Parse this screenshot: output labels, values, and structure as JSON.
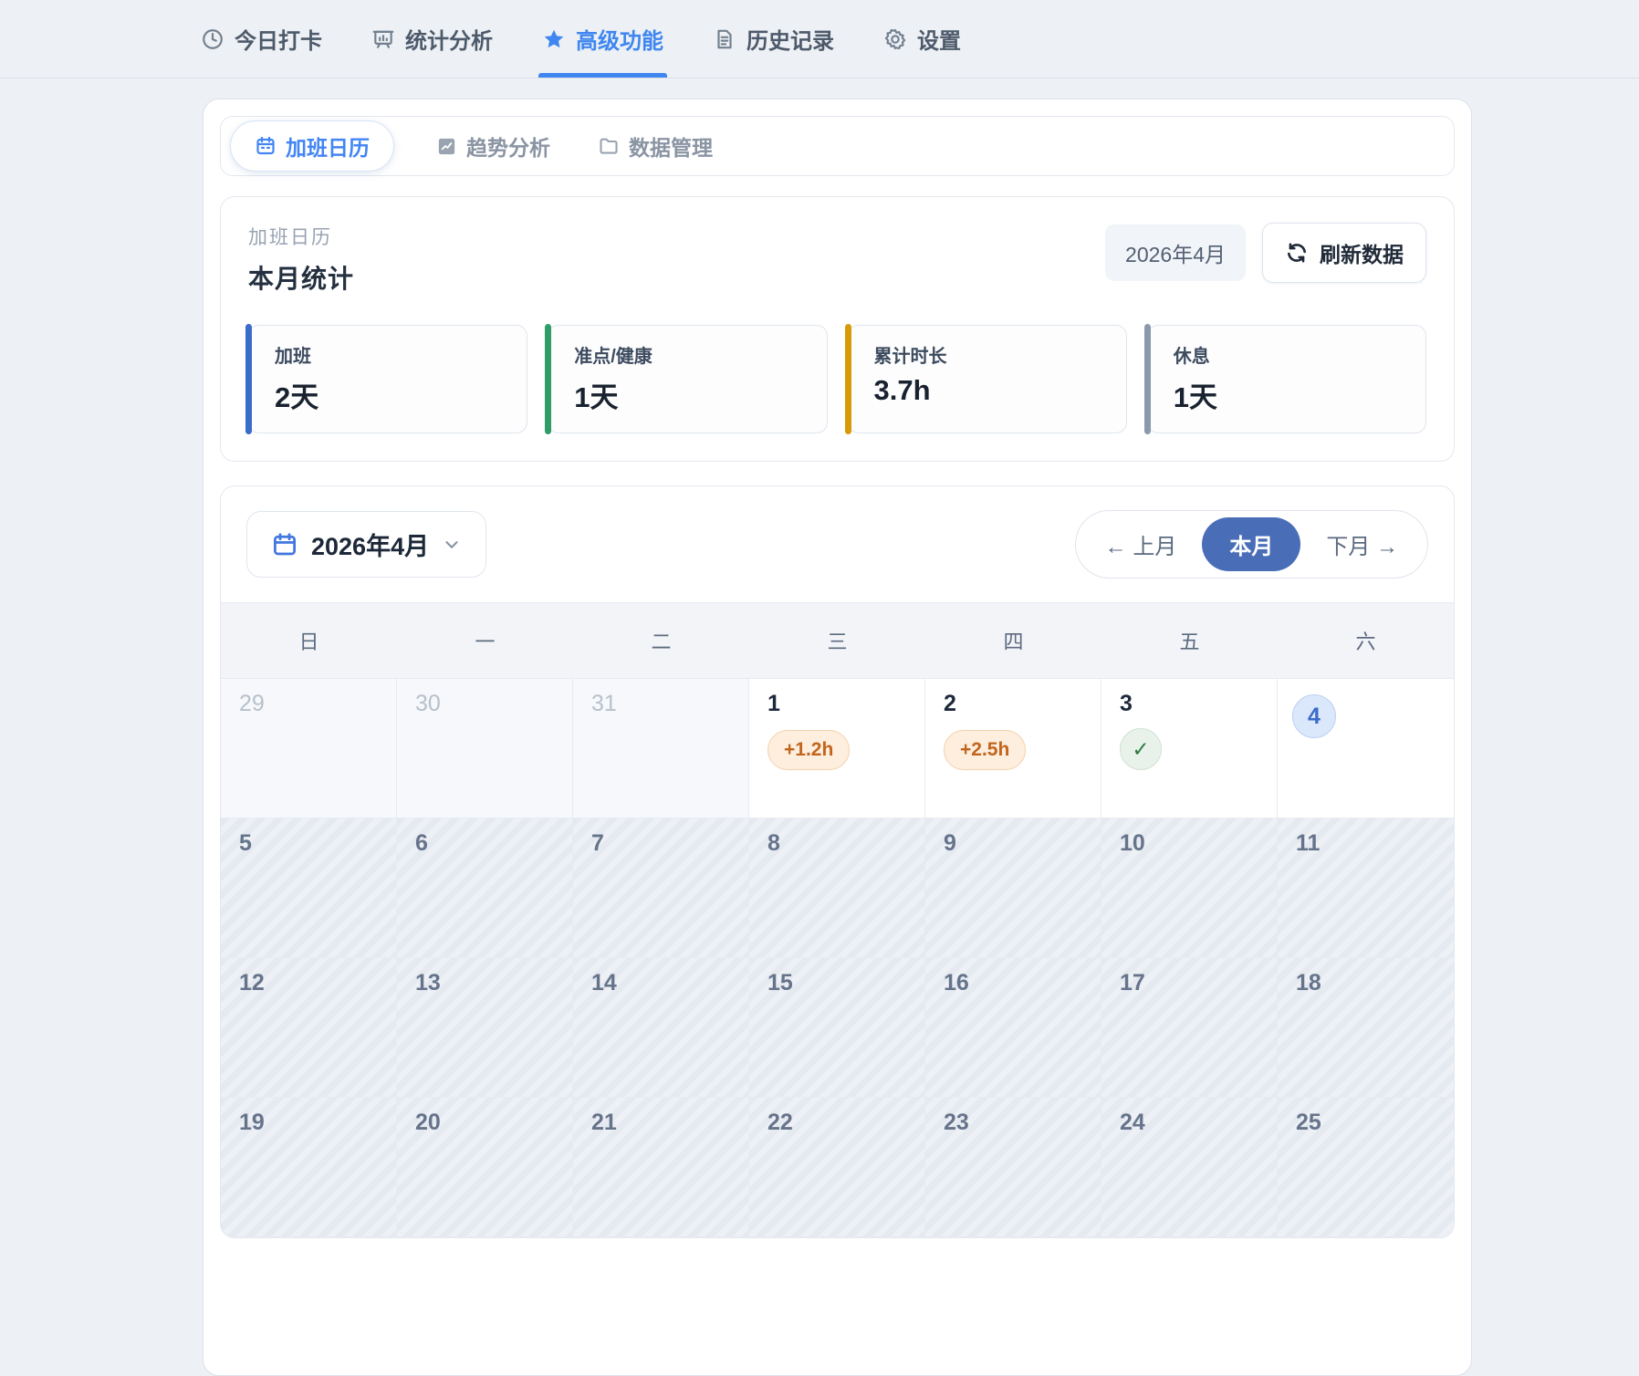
{
  "nav": {
    "items": [
      {
        "label": "今日打卡",
        "icon": "clock",
        "active": false
      },
      {
        "label": "统计分析",
        "icon": "chart-board",
        "active": false
      },
      {
        "label": "高级功能",
        "icon": "star",
        "active": true
      },
      {
        "label": "历史记录",
        "icon": "document",
        "active": false
      },
      {
        "label": "设置",
        "icon": "gear",
        "active": false
      }
    ]
  },
  "subtabs": {
    "items": [
      {
        "label": "加班日历",
        "icon": "calendar",
        "active": true
      },
      {
        "label": "趋势分析",
        "icon": "trend",
        "active": false
      },
      {
        "label": "数据管理",
        "icon": "folder",
        "active": false
      }
    ]
  },
  "overview": {
    "card_label": "加班日历",
    "title": "本月统计",
    "month_badge": "2026年4月",
    "refresh_label": "刷新数据",
    "stats": [
      {
        "label": "加班",
        "value": "2天",
        "accent": "#3a6cc9"
      },
      {
        "label": "准点/健康",
        "value": "1天",
        "accent": "#2f9d68"
      },
      {
        "label": "累计时长",
        "value": "3.7h",
        "accent": "#d89b08"
      },
      {
        "label": "休息",
        "value": "1天",
        "accent": "#8b99ad"
      }
    ]
  },
  "calendar": {
    "month_label": "2026年4月",
    "nav": {
      "prev": "← 上月",
      "current": "本月",
      "next": "下月 →"
    },
    "weekdays": [
      "日",
      "一",
      "二",
      "三",
      "四",
      "五",
      "六"
    ],
    "status_colors": {
      "overtime_text": "#c2651d",
      "overtime_bg": "#fdeede",
      "ontime_green": "#2c7a3f",
      "today_blue": "#3b6cc9"
    },
    "check_glyph": "✓",
    "weeks": [
      [
        {
          "day": "29",
          "type": "prev"
        },
        {
          "day": "30",
          "type": "prev"
        },
        {
          "day": "31",
          "type": "prev"
        },
        {
          "day": "1",
          "type": "overtime",
          "badge": "+1.2h"
        },
        {
          "day": "2",
          "type": "overtime",
          "badge": "+2.5h"
        },
        {
          "day": "3",
          "type": "ontime"
        },
        {
          "day": "4",
          "type": "today"
        }
      ],
      [
        {
          "day": "5",
          "type": "future"
        },
        {
          "day": "6",
          "type": "future"
        },
        {
          "day": "7",
          "type": "future"
        },
        {
          "day": "8",
          "type": "future"
        },
        {
          "day": "9",
          "type": "future"
        },
        {
          "day": "10",
          "type": "future"
        },
        {
          "day": "11",
          "type": "future"
        }
      ],
      [
        {
          "day": "12",
          "type": "future"
        },
        {
          "day": "13",
          "type": "future"
        },
        {
          "day": "14",
          "type": "future"
        },
        {
          "day": "15",
          "type": "future"
        },
        {
          "day": "16",
          "type": "future"
        },
        {
          "day": "17",
          "type": "future"
        },
        {
          "day": "18",
          "type": "future"
        }
      ],
      [
        {
          "day": "19",
          "type": "future"
        },
        {
          "day": "20",
          "type": "future"
        },
        {
          "day": "21",
          "type": "future"
        },
        {
          "day": "22",
          "type": "future"
        },
        {
          "day": "23",
          "type": "future"
        },
        {
          "day": "24",
          "type": "future"
        },
        {
          "day": "25",
          "type": "future"
        }
      ]
    ]
  }
}
